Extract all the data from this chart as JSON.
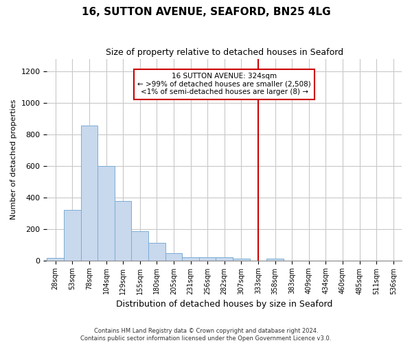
{
  "title": "16, SUTTON AVENUE, SEAFORD, BN25 4LG",
  "subtitle": "Size of property relative to detached houses in Seaford",
  "xlabel": "Distribution of detached houses by size in Seaford",
  "ylabel": "Number of detached properties",
  "footer_line1": "Contains HM Land Registry data © Crown copyright and database right 2024.",
  "footer_line2": "Contains public sector information licensed under the Open Government Licence v3.0.",
  "bar_color": "#c8d8ed",
  "bar_edge_color": "#7aadd4",
  "grid_color": "#c8c8c8",
  "background_color": "#ffffff",
  "vline_color": "#cc0000",
  "vline_x": 12.0,
  "annotation_text_line1": "16 SUTTON AVENUE: 324sqm",
  "annotation_text_line2": "← >99% of detached houses are smaller (2,508)",
  "annotation_text_line3": "<1% of semi-detached houses are larger (8) →",
  "annotation_color": "#cc0000",
  "categories": [
    "28sqm",
    "53sqm",
    "78sqm",
    "104sqm",
    "129sqm",
    "155sqm",
    "180sqm",
    "205sqm",
    "231sqm",
    "256sqm",
    "282sqm",
    "307sqm",
    "333sqm",
    "358sqm",
    "383sqm",
    "409sqm",
    "434sqm",
    "460sqm",
    "485sqm",
    "511sqm",
    "536sqm"
  ],
  "bar_heights": [
    15,
    320,
    855,
    600,
    375,
    185,
    110,
    45,
    20,
    20,
    20,
    10,
    0,
    10,
    0,
    0,
    0,
    0,
    0,
    0,
    0
  ],
  "ylim": [
    0,
    1280
  ],
  "yticks": [
    0,
    200,
    400,
    600,
    800,
    1000,
    1200
  ]
}
